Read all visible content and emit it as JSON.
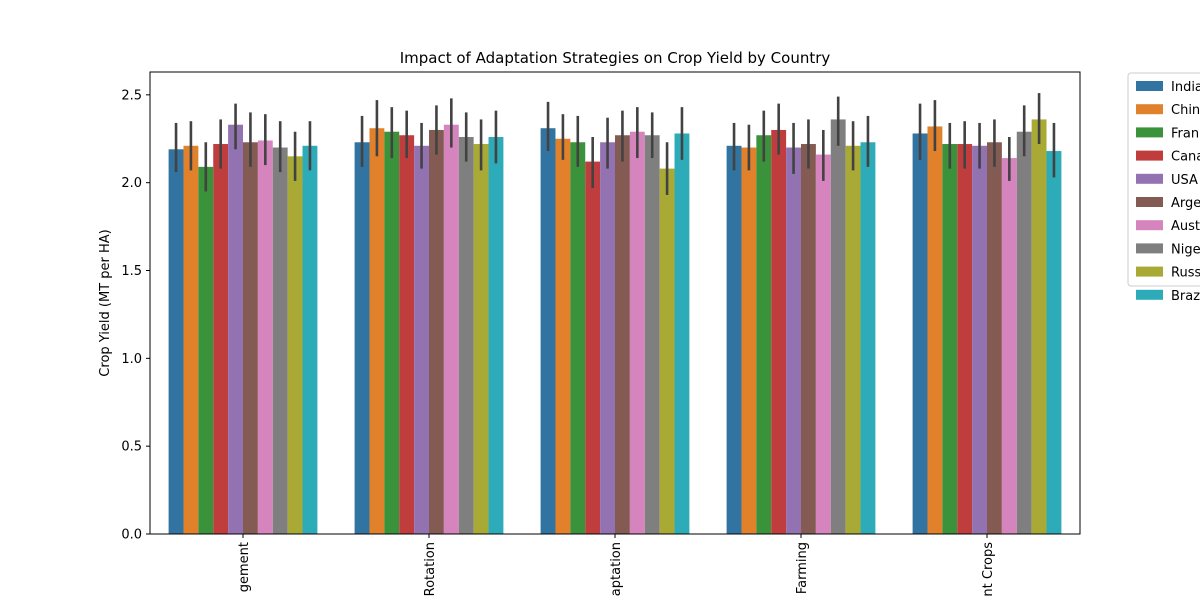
{
  "chart_data": {
    "type": "bar",
    "title": "Impact of Adaptation Strategies on Crop Yield by Country",
    "xlabel": "",
    "ylabel": "Crop Yield (MT per HA)",
    "ylim": [
      0,
      2.63
    ],
    "yticks": [
      0.0,
      0.5,
      1.0,
      1.5,
      2.0,
      2.5
    ],
    "ytick_labels": [
      "0.0",
      "0.5",
      "1.0",
      "1.5",
      "2.0",
      "2.5"
    ],
    "categories": [
      "gement",
      "Rotation",
      "aptation",
      "Farming",
      "nt Crops"
    ],
    "legend_position": "outside-right",
    "grid": false,
    "error_bars": true,
    "series": [
      {
        "name": "India",
        "color": "#3274a1",
        "values": [
          2.19,
          2.23,
          2.31,
          2.21,
          2.28
        ],
        "err": [
          [
            2.06,
            2.34
          ],
          [
            2.09,
            2.38
          ],
          [
            2.18,
            2.46
          ],
          [
            2.07,
            2.34
          ],
          [
            2.13,
            2.45
          ]
        ]
      },
      {
        "name": "Chin",
        "color": "#e1812c",
        "values": [
          2.21,
          2.31,
          2.25,
          2.2,
          2.32
        ],
        "err": [
          [
            2.07,
            2.35
          ],
          [
            2.15,
            2.47
          ],
          [
            2.13,
            2.39
          ],
          [
            2.07,
            2.33
          ],
          [
            2.18,
            2.47
          ]
        ]
      },
      {
        "name": "Fran",
        "color": "#3a923a",
        "values": [
          2.09,
          2.29,
          2.23,
          2.27,
          2.22
        ],
        "err": [
          [
            1.95,
            2.23
          ],
          [
            2.14,
            2.43
          ],
          [
            2.09,
            2.38
          ],
          [
            2.12,
            2.41
          ],
          [
            2.08,
            2.34
          ]
        ]
      },
      {
        "name": "Cana",
        "color": "#c03d3e",
        "values": [
          2.22,
          2.27,
          2.12,
          2.3,
          2.22
        ],
        "err": [
          [
            2.08,
            2.36
          ],
          [
            2.14,
            2.41
          ],
          [
            1.97,
            2.26
          ],
          [
            2.16,
            2.45
          ],
          [
            2.08,
            2.35
          ]
        ]
      },
      {
        "name": "USA",
        "color": "#9372b2",
        "values": [
          2.33,
          2.21,
          2.23,
          2.2,
          2.21
        ],
        "err": [
          [
            2.19,
            2.45
          ],
          [
            2.08,
            2.34
          ],
          [
            2.08,
            2.37
          ],
          [
            2.05,
            2.34
          ],
          [
            2.08,
            2.34
          ]
        ]
      },
      {
        "name": "Arge",
        "color": "#845b53",
        "values": [
          2.23,
          2.3,
          2.27,
          2.22,
          2.23
        ],
        "err": [
          [
            2.09,
            2.4
          ],
          [
            2.16,
            2.44
          ],
          [
            2.12,
            2.41
          ],
          [
            2.08,
            2.36
          ],
          [
            2.09,
            2.36
          ]
        ]
      },
      {
        "name": "Aust",
        "color": "#d684bd",
        "values": [
          2.24,
          2.33,
          2.29,
          2.16,
          2.14
        ],
        "err": [
          [
            2.1,
            2.39
          ],
          [
            2.2,
            2.48
          ],
          [
            2.14,
            2.43
          ],
          [
            2.01,
            2.3
          ],
          [
            2.01,
            2.26
          ]
        ]
      },
      {
        "name": "Nige",
        "color": "#7f7f7f",
        "values": [
          2.2,
          2.26,
          2.27,
          2.36,
          2.29
        ],
        "err": [
          [
            2.06,
            2.35
          ],
          [
            2.12,
            2.4
          ],
          [
            2.14,
            2.4
          ],
          [
            2.21,
            2.49
          ],
          [
            2.15,
            2.44
          ]
        ]
      },
      {
        "name": "Russ",
        "color": "#a9aa35",
        "values": [
          2.15,
          2.22,
          2.08,
          2.21,
          2.36
        ],
        "err": [
          [
            2.01,
            2.29
          ],
          [
            2.07,
            2.36
          ],
          [
            1.93,
            2.23
          ],
          [
            2.07,
            2.35
          ],
          [
            2.22,
            2.51
          ]
        ]
      },
      {
        "name": "Braz",
        "color": "#2eabb8",
        "values": [
          2.21,
          2.26,
          2.28,
          2.23,
          2.18
        ],
        "err": [
          [
            2.07,
            2.35
          ],
          [
            2.11,
            2.41
          ],
          [
            2.13,
            2.43
          ],
          [
            2.09,
            2.38
          ],
          [
            2.03,
            2.34
          ]
        ]
      }
    ]
  }
}
